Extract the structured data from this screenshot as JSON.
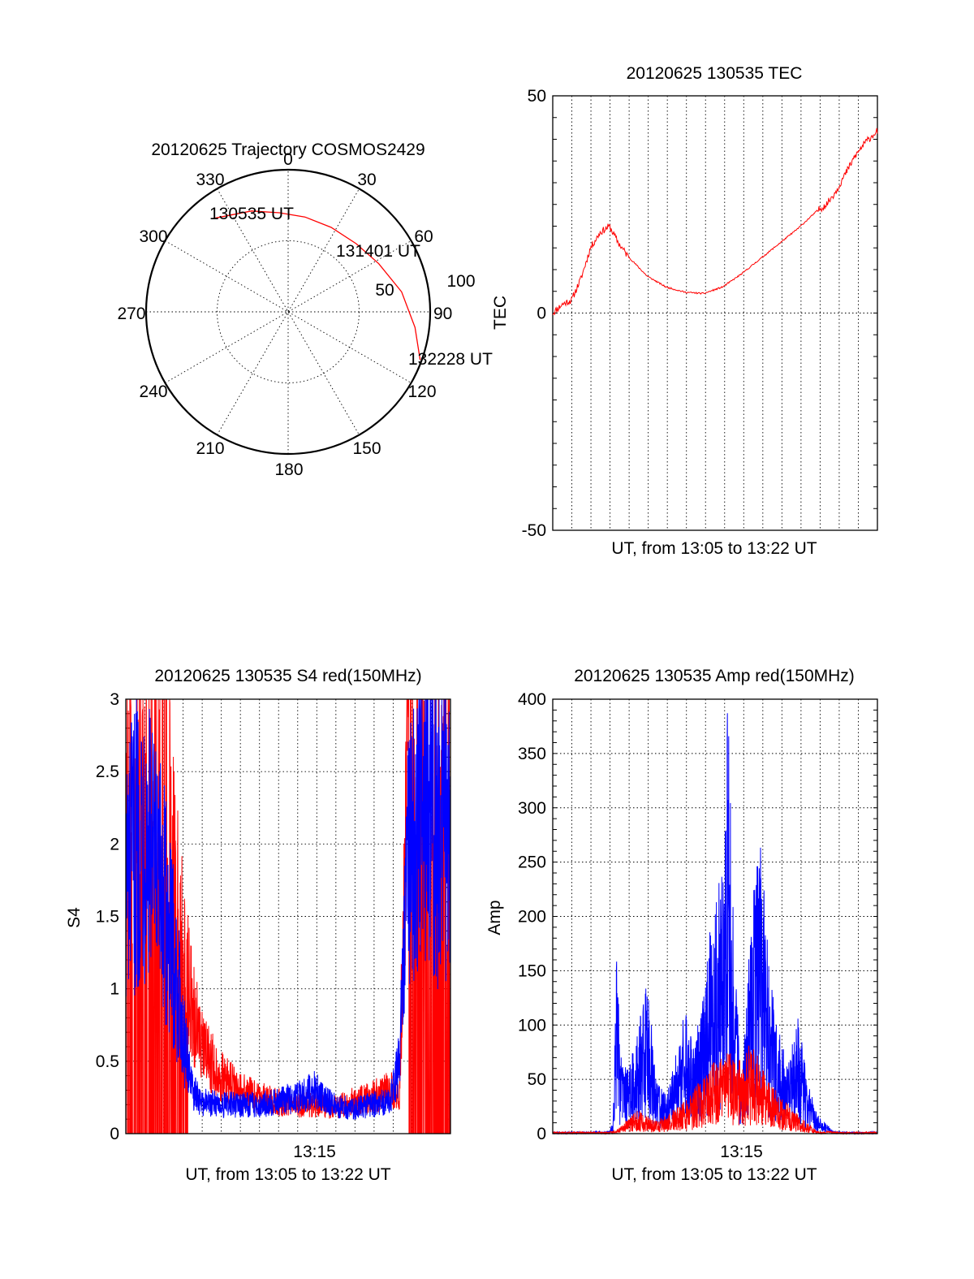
{
  "chart_data": [
    {
      "type": "polar",
      "title": "20120625 Trajectory COSMOS2429",
      "angle_labels": [
        "0",
        "30",
        "60",
        "90",
        "120",
        "150",
        "180",
        "210",
        "240",
        "270",
        "300",
        "330"
      ],
      "radius_labels": [
        "50",
        "100"
      ],
      "series": [
        {
          "color": "#ff0000",
          "points": [
            {
              "azimuth": 321,
              "elevation": 14
            },
            {
              "azimuth": 340,
              "elevation": 22
            },
            {
              "azimuth": 355,
              "elevation": 27
            },
            {
              "azimuth": 10,
              "elevation": 29
            },
            {
              "azimuth": 27,
              "elevation": 30
            },
            {
              "azimuth": 45,
              "elevation": 29
            },
            {
              "azimuth": 62,
              "elevation": 25
            },
            {
              "azimuth": 80,
              "elevation": 17
            },
            {
              "azimuth": 97,
              "elevation": 9
            },
            {
              "azimuth": 110,
              "elevation": 1
            }
          ]
        }
      ],
      "annotations": [
        "130535 UT",
        "131401 UT",
        "132228 UT"
      ]
    },
    {
      "type": "line",
      "title": "20120625 130535 TEC",
      "xlabel": "UT, from 13:05 to 13:22 UT",
      "ylabel": "TEC",
      "xlim": [
        0,
        17.2
      ],
      "ylim": [
        -50,
        50
      ],
      "yticks": [
        "-50",
        "0",
        "50"
      ],
      "grid": true,
      "series": [
        {
          "color": "#ff0000",
          "x": [
            0,
            0.5,
            1,
            1.5,
            2,
            2.5,
            3,
            3.5,
            4,
            5,
            6,
            7,
            8,
            9,
            10,
            11,
            12,
            13,
            14,
            14.5,
            15,
            15.5,
            16,
            16.5,
            17.2
          ],
          "y": [
            0,
            2,
            3,
            8,
            15,
            18.5,
            20,
            16,
            13,
            8.5,
            6,
            4.8,
            4.5,
            6,
            9,
            12.5,
            16,
            19.5,
            23.5,
            25,
            28,
            32,
            36,
            39,
            42
          ]
        }
      ]
    },
    {
      "type": "line",
      "title": "20120625 130535 S4 red(150MHz)",
      "xlabel": "UT, from 13:05 to 13:22 UT",
      "ylabel": "S4",
      "xlim": [
        0,
        17.2
      ],
      "ylim": [
        0,
        3
      ],
      "yticks": [
        "0",
        "0.5",
        "1",
        "1.5",
        "2",
        "2.5",
        "3"
      ],
      "xticks": [
        {
          "value": 10,
          "label": "13:15"
        }
      ],
      "grid": true,
      "series": [
        {
          "color": "#ff0000",
          "x": [
            0,
            0.5,
            1,
            1.5,
            2,
            2.5,
            3,
            3.5,
            4,
            5,
            6,
            7,
            8,
            9,
            10,
            11,
            12,
            13,
            14,
            14.5,
            15,
            15.5,
            16,
            16.5,
            17.2
          ],
          "y": [
            3,
            2.2,
            2.8,
            2.5,
            3,
            1.8,
            1.2,
            0.9,
            0.6,
            0.4,
            0.3,
            0.25,
            0.22,
            0.2,
            0.2,
            0.18,
            0.22,
            0.25,
            0.3,
            0.3,
            3,
            2.4,
            3,
            2.7,
            3
          ]
        },
        {
          "color": "#0000ff",
          "x": [
            0,
            0.5,
            1,
            1.5,
            2,
            2.5,
            3,
            3.5,
            4,
            5,
            6,
            7,
            8,
            9,
            10,
            11,
            12,
            13,
            14,
            14.5,
            15,
            15.5,
            16,
            16.5,
            17.2
          ],
          "y": [
            1.8,
            2.1,
            2.3,
            1.9,
            1.7,
            1.3,
            0.8,
            0.3,
            0.22,
            0.2,
            0.2,
            0.2,
            0.22,
            0.25,
            0.3,
            0.2,
            0.17,
            0.2,
            0.22,
            0.5,
            2.0,
            2.3,
            2.6,
            2.2,
            2.4
          ]
        }
      ]
    },
    {
      "type": "line",
      "title": "20120625 130535 Amp red(150MHz)",
      "xlabel": "UT, from 13:05 to 13:22 UT",
      "ylabel": "Amp",
      "xlim": [
        0,
        17.2
      ],
      "ylim": [
        0,
        400
      ],
      "yticks": [
        "0",
        "50",
        "100",
        "150",
        "200",
        "250",
        "300",
        "350",
        "400"
      ],
      "xticks": [
        {
          "value": 10,
          "label": "13:15"
        }
      ],
      "grid": true,
      "series": [
        {
          "color": "#ff0000",
          "x": [
            0,
            1,
            2,
            3,
            3.5,
            4,
            4.5,
            5,
            5.5,
            6,
            6.5,
            7,
            7.5,
            8,
            8.5,
            9,
            9.5,
            10,
            10.5,
            11,
            11.5,
            12,
            12.5,
            13,
            13.5,
            14,
            15,
            16,
            17.2
          ],
          "y": [
            0,
            0,
            0,
            0,
            5,
            12,
            18,
            15,
            10,
            14,
            20,
            25,
            35,
            45,
            55,
            60,
            65,
            60,
            75,
            55,
            40,
            30,
            22,
            15,
            8,
            2,
            0,
            0,
            0
          ]
        },
        {
          "color": "#0000ff",
          "x": [
            0,
            1,
            2,
            3,
            3.2,
            3.4,
            3.6,
            4,
            4.5,
            5,
            5.5,
            6,
            6.5,
            7,
            7.5,
            8,
            8.5,
            9,
            9.3,
            9.6,
            10,
            10.5,
            11,
            11.5,
            12,
            12.5,
            13,
            13.5,
            14,
            15,
            16,
            17.2
          ],
          "y": [
            0,
            0,
            0,
            2,
            10,
            150,
            60,
            50,
            80,
            120,
            40,
            30,
            60,
            100,
            70,
            110,
            180,
            200,
            350,
            160,
            30,
            180,
            230,
            120,
            80,
            60,
            90,
            40,
            15,
            0,
            0,
            0
          ]
        }
      ]
    }
  ]
}
